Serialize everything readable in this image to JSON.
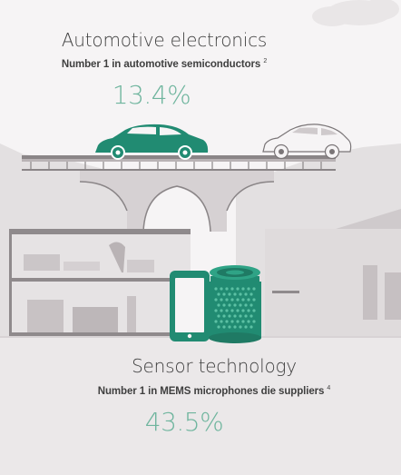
{
  "automotive": {
    "title": "Automotive electronics",
    "subtitle": "Number 1 in automotive semiconductors",
    "footnote": "2",
    "share": "13.4%"
  },
  "sensor": {
    "title": "Sensor technology",
    "subtitle": "Number 1 in MEMS microphones die suppliers",
    "footnote": "4",
    "share": "43.5%"
  },
  "colors": {
    "background": "#f6f4f5",
    "accent": "#218b72",
    "accent_light": "#6fb59e",
    "scenery": "#cfcacc",
    "scenery_dark": "#b9b3b5",
    "outline": "#7a7577",
    "text": "#3f3f3f"
  },
  "icons": [
    "cloud-icon",
    "car-icon",
    "smartphone-icon",
    "mems-microphone-icon"
  ]
}
